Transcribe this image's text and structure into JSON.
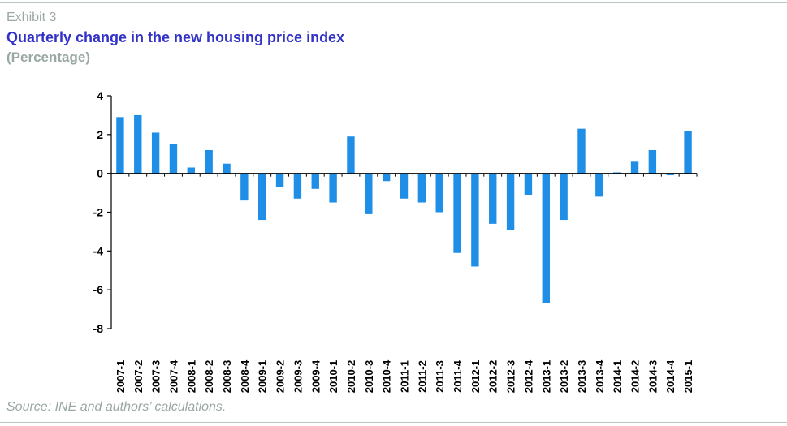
{
  "header": {
    "exhibit": "Exhibit 3",
    "title": "Quarterly change in the new housing price index",
    "subtitle": "(Percentage)"
  },
  "footer": {
    "source": "Source: INE and authors’ calculations."
  },
  "chart_data": {
    "type": "bar",
    "title": "Quarterly change in the new housing price index",
    "subtitle": "(Percentage)",
    "xlabel": "",
    "ylabel": "",
    "ylim": [
      -8,
      4
    ],
    "yticks": [
      4,
      2,
      0,
      -2,
      -4,
      -6,
      -8
    ],
    "grid": false,
    "bar_color": "#1f8ee6",
    "categories": [
      "2007-1",
      "2007-2",
      "2007-3",
      "2007-4",
      "2008-1",
      "2008-2",
      "2008-3",
      "2008-4",
      "2009-1",
      "2009-2",
      "2009-3",
      "2009-4",
      "2010-1",
      "2010-2",
      "2010-3",
      "2010-4",
      "2011-1",
      "2011-2",
      "2011-3",
      "2011-4",
      "2012-1",
      "2012-2",
      "2012-3",
      "2012-4",
      "2013-1",
      "2013-2",
      "2013-3",
      "2013-4",
      "2014-1",
      "2014-2",
      "2014-3",
      "2014-4",
      "2015-1"
    ],
    "values": [
      2.9,
      3.0,
      2.1,
      1.5,
      0.3,
      1.2,
      0.5,
      -1.4,
      -2.4,
      -0.7,
      -1.3,
      -0.8,
      -1.5,
      1.9,
      -2.1,
      -0.4,
      -1.3,
      -1.5,
      -2.0,
      -4.1,
      -4.8,
      -2.6,
      -2.9,
      -1.1,
      -6.7,
      -2.4,
      2.3,
      -1.2,
      0.05,
      0.6,
      1.2,
      -0.1,
      2.2
    ]
  }
}
